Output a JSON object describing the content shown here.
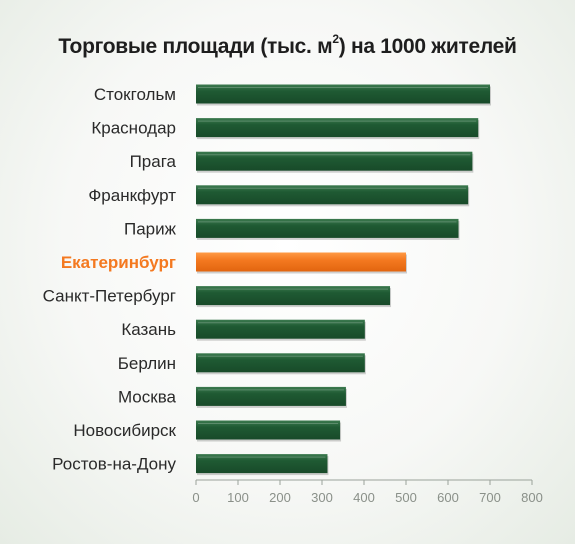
{
  "title": {
    "before_sup": "Торговые площади (тыс. м",
    "sup": "2",
    "after_sup": ") на 1000 жителей"
  },
  "colors": {
    "bar": "#1f5a33",
    "bar_highlight": "#f47920",
    "label": "#2a2a2a",
    "label_highlight": "#f47920",
    "axis": "#9aa29a",
    "tick_label": "#8a9089"
  },
  "chart_data": {
    "type": "bar",
    "orientation": "horizontal",
    "title": "Торговые площади (тыс. м2) на 1000 жителей",
    "xlabel": "",
    "ylabel": "",
    "xlim": [
      0,
      800
    ],
    "xticks": [
      0,
      100,
      200,
      300,
      400,
      500,
      600,
      700,
      800
    ],
    "grid": false,
    "categories": [
      "Стокгольм",
      "Краснодар",
      "Прага",
      "Франкфурт",
      "Париж",
      "Екатеринбург",
      "Санкт-Петербург",
      "Казань",
      "Берлин",
      "Москва",
      "Новосибирск",
      "Ростов-на-Дону"
    ],
    "values": [
      700,
      672,
      658,
      648,
      625,
      500,
      462,
      402,
      402,
      357,
      343,
      313
    ],
    "highlight": "Екатеринбург"
  }
}
